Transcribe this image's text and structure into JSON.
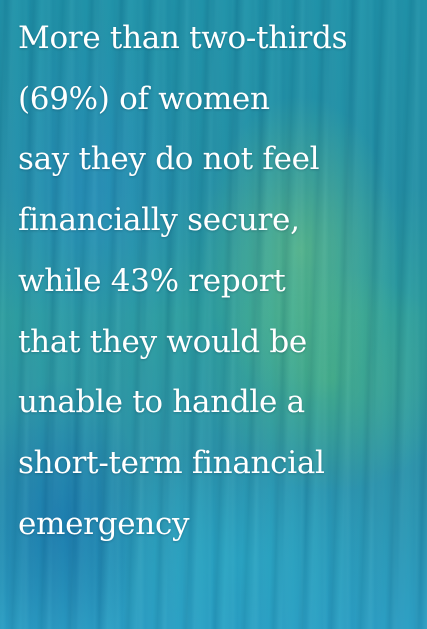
{
  "quote": {
    "lines": [
      "More than two-thirds",
      "(69%) of women",
      "say they do not feel",
      "financially secure,",
      "while 43% report",
      "that they would be",
      "unable to handle a",
      "short-term financial",
      "emergency"
    ]
  },
  "colors": {
    "text": "#ffffff",
    "background_primary": "#238da3",
    "background_accent": "#78c878"
  }
}
